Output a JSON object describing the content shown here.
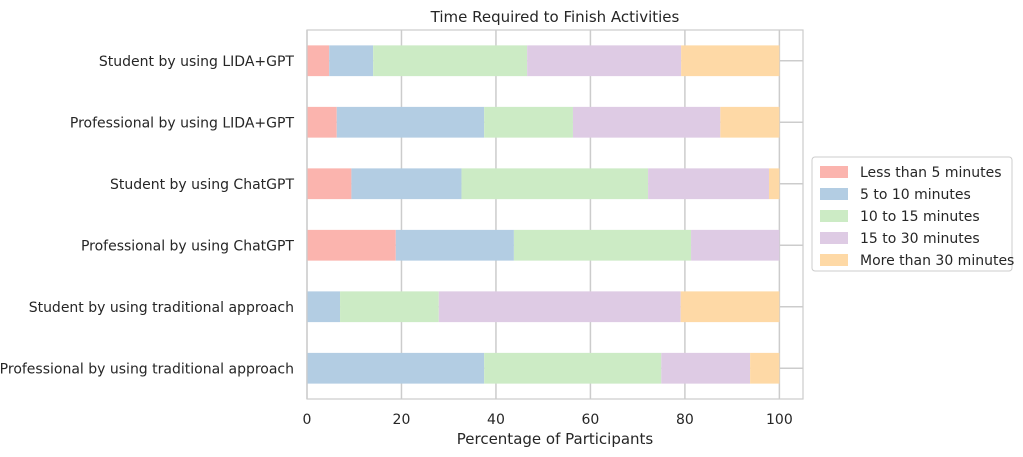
{
  "chart_data": {
    "type": "bar",
    "orientation": "horizontal",
    "stacked": true,
    "title": "Time Required to Finish Activities",
    "xlabel": "Percentage of Participants",
    "ylabel": "",
    "xlim": [
      0,
      105
    ],
    "xticks": [
      0,
      20,
      40,
      60,
      80,
      100
    ],
    "grid": true,
    "legend_position": "right",
    "categories": [
      "Student by using LIDA+GPT",
      "Professional by using LIDA+GPT",
      "Student by using ChatGPT",
      "Professional by using ChatGPT",
      "Student by using traditional approach",
      "Professional by using traditional approach"
    ],
    "series": [
      {
        "name": "Less than 5 minutes",
        "color": "#fbb4ae",
        "values": [
          4.7,
          6.3,
          9.4,
          18.8,
          0,
          0
        ]
      },
      {
        "name": "5 to 10 minutes",
        "color": "#b3cde3",
        "values": [
          9.3,
          31.2,
          23.3,
          25.0,
          7.0,
          37.5
        ]
      },
      {
        "name": "10 to 15 minutes",
        "color": "#ccebc5",
        "values": [
          32.6,
          18.8,
          39.5,
          37.5,
          20.9,
          37.5
        ]
      },
      {
        "name": "15 to 30 minutes",
        "color": "#decbe4",
        "values": [
          32.6,
          31.2,
          25.6,
          18.7,
          51.2,
          18.8
        ]
      },
      {
        "name": "More than 30 minutes",
        "color": "#fed9a6",
        "values": [
          20.8,
          12.5,
          2.2,
          0,
          20.9,
          6.2
        ]
      }
    ]
  }
}
